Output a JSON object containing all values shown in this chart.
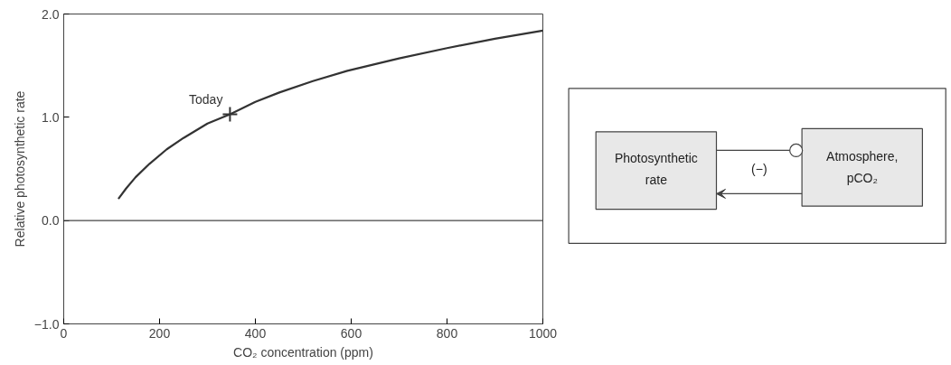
{
  "chart_data": {
    "type": "line",
    "xlabel": "CO₂ concentration (ppm)",
    "ylabel": "Relative photosynthetic rate",
    "xlim": [
      0,
      1000
    ],
    "xticks": [
      0,
      200,
      400,
      600,
      800,
      1000
    ],
    "ylim": [
      -1,
      2
    ],
    "yticks": [
      {
        "value": -1,
        "label": "−1.0"
      },
      {
        "value": 0,
        "label": "0.0"
      },
      {
        "value": 1,
        "label": "1.0"
      },
      {
        "value": 2,
        "label": "2.0"
      }
    ],
    "grid": false,
    "line_style": "solid",
    "marker": "none",
    "series": [
      {
        "color": "#333333",
        "x": [
          114,
          130,
          150,
          179,
          215,
          250,
          300,
          347,
          400,
          450,
          520,
          592,
          700,
          800,
          900,
          1000
        ],
        "values": [
          0.21,
          0.31,
          0.42,
          0.55,
          0.69,
          0.8,
          0.94,
          1.03,
          1.15,
          1.24,
          1.35,
          1.45,
          1.57,
          1.67,
          1.76,
          1.84
        ]
      },
      {
        "type": "scatter",
        "marker": "cross",
        "color": "#333333",
        "x": [
          347
        ],
        "values": [
          1.03
        ]
      }
    ],
    "ref_lines": [
      {
        "axis": "y",
        "value": 0,
        "color": "#444444"
      }
    ],
    "annotations": [
      {
        "text": "Today",
        "x": 347,
        "y": 1.03
      },
      "Photosynthetic\nrate",
      "(−)",
      "Atmosphere,\npCO₂"
    ]
  }
}
